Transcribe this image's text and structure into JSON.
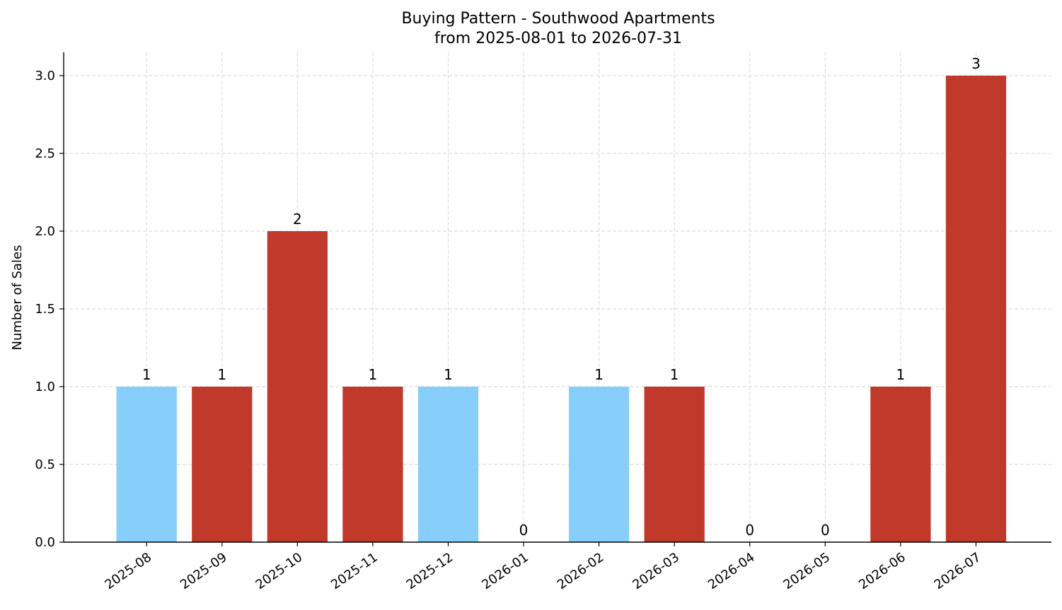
{
  "chart_data": {
    "type": "bar",
    "title": "Buying Pattern - Southwood Apartments",
    "subtitle": "from 2025-08-01 to 2026-07-31",
    "xlabel": "",
    "ylabel": "Number of Sales",
    "categories": [
      "2025-08",
      "2025-09",
      "2025-10",
      "2025-11",
      "2025-12",
      "2026-01",
      "2026-02",
      "2026-03",
      "2026-04",
      "2026-05",
      "2026-06",
      "2026-07"
    ],
    "values": [
      1,
      1,
      2,
      1,
      1,
      0,
      1,
      1,
      0,
      0,
      1,
      3
    ],
    "bar_colors": [
      "#87CEFA",
      "#C0392B",
      "#C0392B",
      "#C0392B",
      "#87CEFA",
      "#C0392B",
      "#87CEFA",
      "#C0392B",
      "#C0392B",
      "#C0392B",
      "#C0392B",
      "#C0392B"
    ],
    "data_labels": [
      "1",
      "1",
      "2",
      "1",
      "1",
      "0",
      "1",
      "1",
      "0",
      "0",
      "1",
      "3"
    ],
    "yticks": [
      0.0,
      0.5,
      1.0,
      1.5,
      2.0,
      2.5,
      3.0
    ],
    "ytick_labels": [
      "0.0",
      "0.5",
      "1.0",
      "1.5",
      "2.0",
      "2.5",
      "3.0"
    ],
    "ylim": [
      0,
      3.15
    ],
    "grid": true,
    "legend": "none"
  }
}
